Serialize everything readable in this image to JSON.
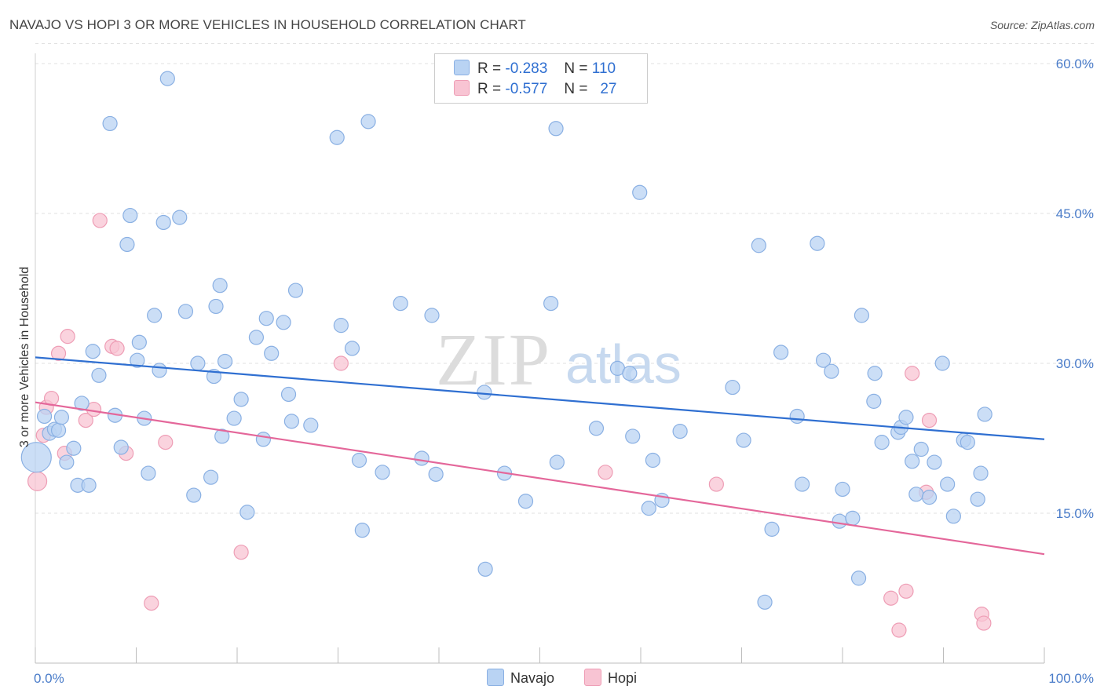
{
  "header": {
    "title": "NAVAJO VS HOPI 3 OR MORE VEHICLES IN HOUSEHOLD CORRELATION CHART",
    "source": "Source: ZipAtlas.com"
  },
  "legend": {
    "rows": [
      {
        "r_label": "R =",
        "r_value": "-0.283",
        "n_label": "N =",
        "n_value": "110"
      },
      {
        "r_label": "R =",
        "r_value": "-0.577",
        "n_label": "N =",
        "n_value": "27"
      }
    ],
    "bottom": [
      "Navajo",
      "Hopi"
    ]
  },
  "watermark": {
    "zip": "ZIP",
    "atlas": "atlas"
  },
  "colors": {
    "navajo_fill": "#b9d3f3",
    "navajo_stroke": "#8ab0e3",
    "navajo_line": "#2f6fd1",
    "hopi_fill": "#f8c4d3",
    "hopi_stroke": "#ee9db5",
    "hopi_line": "#e4679a",
    "tick_label": "#4a7cc9",
    "grid": "#e2e2e2"
  },
  "chart_data": {
    "type": "scatter",
    "title": "NAVAJO VS HOPI 3 OR MORE VEHICLES IN HOUSEHOLD CORRELATION CHART",
    "xlabel": "",
    "ylabel": "3 or more Vehicles in Household",
    "xlim": [
      0,
      100
    ],
    "ylim": [
      0,
      62
    ],
    "x_tick_labels": [
      "0.0%",
      "100.0%"
    ],
    "y_ticks": [
      15,
      30,
      45,
      60
    ],
    "y_tick_labels": [
      "15.0%",
      "30.0%",
      "45.0%",
      "60.0%"
    ],
    "grid": true,
    "legend_position": "top-center",
    "series": [
      {
        "name": "Navajo",
        "r": -0.283,
        "n": 110,
        "trend": [
          [
            0,
            30.6
          ],
          [
            100,
            22.4
          ]
        ],
        "points": [
          [
            0.1,
            20.6
          ],
          [
            0.9,
            24.7
          ],
          [
            1.4,
            23.0
          ],
          [
            1.9,
            23.4
          ],
          [
            2.3,
            23.3
          ],
          [
            2.6,
            24.6
          ],
          [
            3.1,
            20.1
          ],
          [
            3.8,
            21.5
          ],
          [
            4.2,
            17.8
          ],
          [
            4.6,
            26.0
          ],
          [
            5.3,
            17.8
          ],
          [
            5.7,
            31.2
          ],
          [
            6.3,
            28.8
          ],
          [
            7.4,
            54.0
          ],
          [
            7.9,
            24.8
          ],
          [
            8.5,
            21.6
          ],
          [
            9.1,
            41.9
          ],
          [
            9.4,
            44.8
          ],
          [
            10.1,
            30.3
          ],
          [
            10.3,
            32.1
          ],
          [
            10.8,
            24.5
          ],
          [
            11.2,
            19.0
          ],
          [
            11.8,
            34.8
          ],
          [
            12.3,
            29.3
          ],
          [
            12.7,
            44.1
          ],
          [
            13.1,
            58.5
          ],
          [
            14.3,
            44.6
          ],
          [
            14.9,
            35.2
          ],
          [
            15.7,
            16.8
          ],
          [
            16.1,
            30.0
          ],
          [
            17.4,
            18.6
          ],
          [
            17.7,
            28.7
          ],
          [
            17.9,
            35.7
          ],
          [
            18.3,
            37.8
          ],
          [
            18.5,
            22.7
          ],
          [
            18.8,
            30.2
          ],
          [
            19.7,
            24.5
          ],
          [
            20.4,
            26.4
          ],
          [
            21.0,
            15.1
          ],
          [
            21.9,
            32.6
          ],
          [
            22.6,
            22.4
          ],
          [
            22.9,
            34.5
          ],
          [
            23.4,
            31.0
          ],
          [
            24.6,
            34.1
          ],
          [
            25.1,
            26.9
          ],
          [
            25.4,
            24.2
          ],
          [
            25.8,
            37.3
          ],
          [
            27.3,
            23.8
          ],
          [
            29.9,
            52.6
          ],
          [
            30.3,
            33.8
          ],
          [
            31.4,
            31.5
          ],
          [
            32.1,
            20.3
          ],
          [
            32.4,
            13.3
          ],
          [
            33.0,
            54.2
          ],
          [
            34.4,
            19.1
          ],
          [
            36.2,
            36.0
          ],
          [
            38.3,
            20.5
          ],
          [
            39.3,
            34.8
          ],
          [
            39.7,
            18.9
          ],
          [
            44.5,
            27.1
          ],
          [
            44.6,
            9.4
          ],
          [
            46.5,
            19.0
          ],
          [
            48.6,
            16.2
          ],
          [
            51.1,
            36.0
          ],
          [
            51.6,
            53.5
          ],
          [
            51.7,
            20.1
          ],
          [
            55.6,
            23.5
          ],
          [
            57.7,
            29.5
          ],
          [
            58.9,
            29.0
          ],
          [
            59.2,
            22.7
          ],
          [
            59.9,
            47.1
          ],
          [
            60.8,
            15.5
          ],
          [
            61.2,
            20.3
          ],
          [
            62.1,
            16.3
          ],
          [
            63.9,
            23.2
          ],
          [
            69.1,
            27.6
          ],
          [
            70.2,
            22.3
          ],
          [
            71.7,
            41.8
          ],
          [
            72.3,
            6.1
          ],
          [
            73.0,
            13.4
          ],
          [
            73.9,
            31.1
          ],
          [
            75.5,
            24.7
          ],
          [
            76.0,
            17.9
          ],
          [
            77.5,
            42.0
          ],
          [
            78.1,
            30.3
          ],
          [
            78.9,
            29.2
          ],
          [
            79.7,
            14.2
          ],
          [
            80.0,
            17.4
          ],
          [
            81.0,
            14.5
          ],
          [
            81.6,
            8.5
          ],
          [
            81.9,
            34.8
          ],
          [
            83.1,
            26.2
          ],
          [
            83.2,
            29.0
          ],
          [
            83.9,
            22.1
          ],
          [
            85.5,
            23.1
          ],
          [
            85.8,
            23.6
          ],
          [
            86.3,
            24.6
          ],
          [
            86.9,
            20.2
          ],
          [
            87.3,
            16.9
          ],
          [
            87.8,
            21.4
          ],
          [
            88.6,
            16.6
          ],
          [
            89.1,
            20.1
          ],
          [
            89.9,
            30.0
          ],
          [
            90.4,
            17.9
          ],
          [
            91.0,
            14.7
          ],
          [
            92.0,
            22.3
          ],
          [
            92.4,
            22.1
          ],
          [
            93.4,
            16.4
          ],
          [
            93.7,
            19.0
          ],
          [
            94.1,
            24.9
          ]
        ]
      },
      {
        "name": "Hopi",
        "r": -0.577,
        "n": 27,
        "trend": [
          [
            0,
            26.1
          ],
          [
            100,
            10.9
          ]
        ],
        "points": [
          [
            0.2,
            18.2
          ],
          [
            0.8,
            22.8
          ],
          [
            1.1,
            25.6
          ],
          [
            1.6,
            26.5
          ],
          [
            2.3,
            31.0
          ],
          [
            2.9,
            21.0
          ],
          [
            3.2,
            32.7
          ],
          [
            5.0,
            24.3
          ],
          [
            5.8,
            25.4
          ],
          [
            6.4,
            44.3
          ],
          [
            7.6,
            31.7
          ],
          [
            8.1,
            31.5
          ],
          [
            9.0,
            21.0
          ],
          [
            11.5,
            6.0
          ],
          [
            12.9,
            22.1
          ],
          [
            20.4,
            11.1
          ],
          [
            30.3,
            30.0
          ],
          [
            56.5,
            19.1
          ],
          [
            67.5,
            17.9
          ],
          [
            84.8,
            6.5
          ],
          [
            85.6,
            3.3
          ],
          [
            86.3,
            7.2
          ],
          [
            86.9,
            29.0
          ],
          [
            88.3,
            17.1
          ],
          [
            88.6,
            24.3
          ],
          [
            93.8,
            4.9
          ],
          [
            94.0,
            4.0
          ]
        ]
      }
    ]
  }
}
